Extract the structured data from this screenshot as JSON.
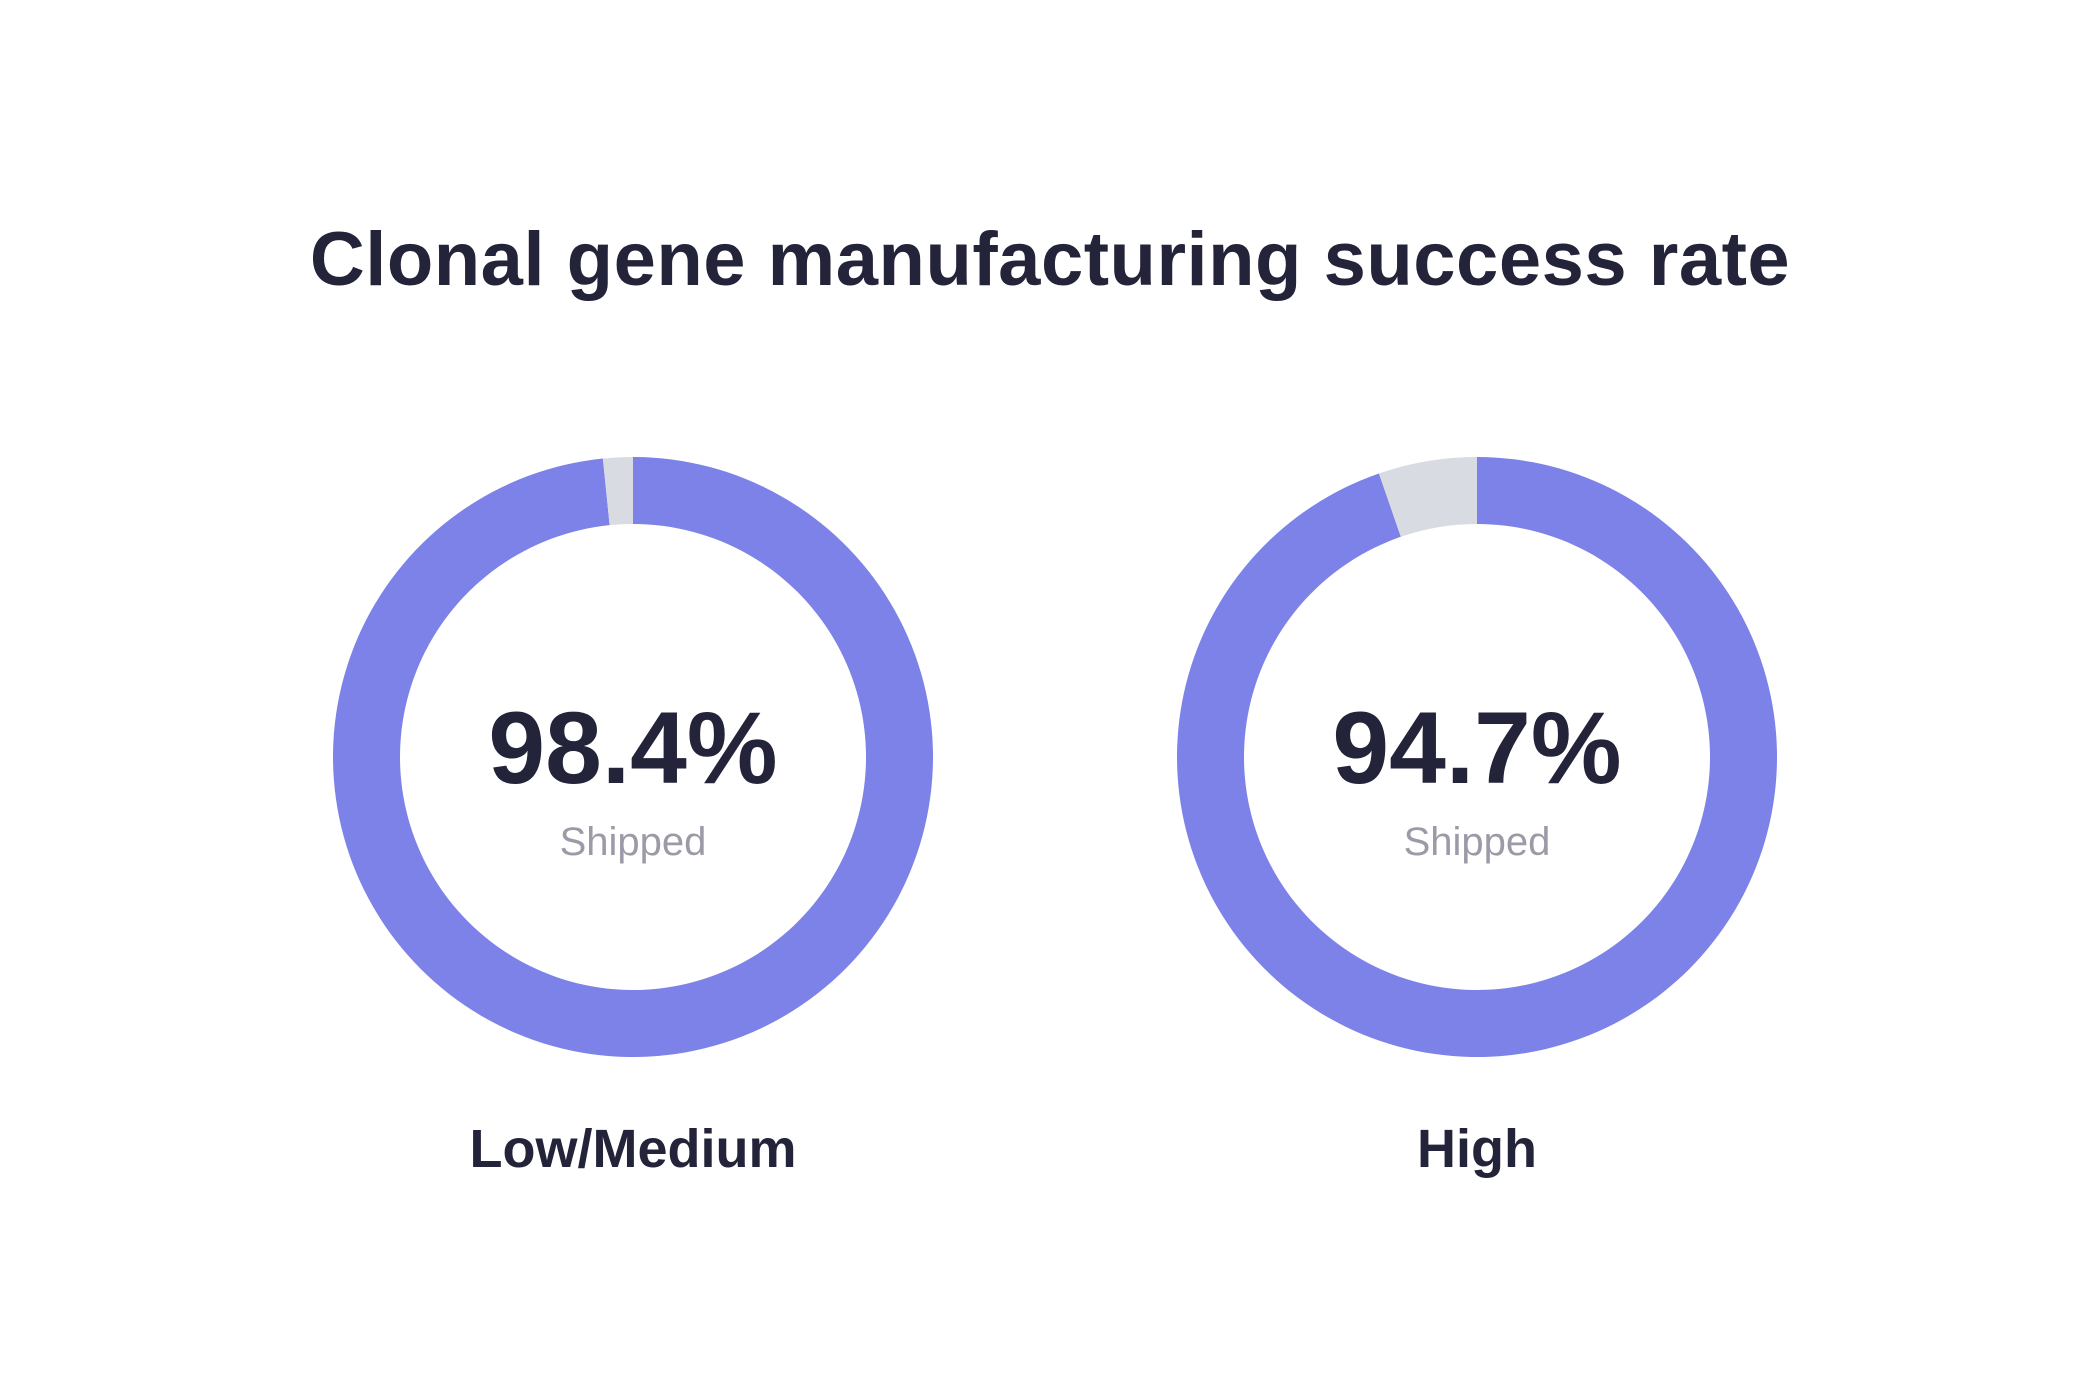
{
  "chart_data": {
    "type": "pie",
    "title": "Clonal gene manufacturing success rate",
    "colors": {
      "shipped": "#7c82e8",
      "remainder": "#d9dbe3",
      "text": "#232339",
      "subtext": "#9b9ba8"
    },
    "charts": [
      {
        "category": "Low/Medium",
        "value": 98.4,
        "value_label": "98.4%",
        "sub_label": "Shipped"
      },
      {
        "category": "High",
        "value": 94.7,
        "value_label": "94.7%",
        "sub_label": "Shipped"
      }
    ]
  }
}
